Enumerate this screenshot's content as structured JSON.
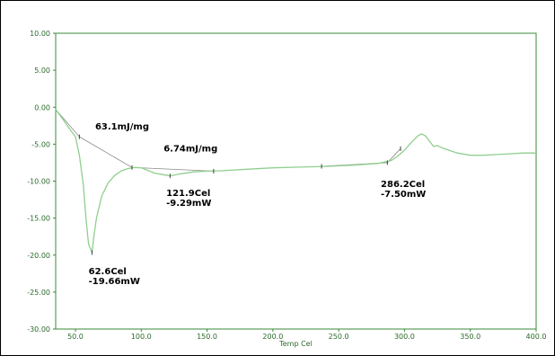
{
  "chart_data": {
    "type": "line",
    "title": "",
    "xlabel": "Temp Cel",
    "ylabel": "",
    "xlim": [
      35,
      400
    ],
    "ylim": [
      -30,
      10
    ],
    "xticks": [
      50,
      100,
      150,
      200,
      250,
      300,
      350,
      400
    ],
    "xtick_labels": [
      "50.0",
      "100.0",
      "150.0",
      "200.0",
      "250.0",
      "300.0",
      "350.0",
      "400.0"
    ],
    "yticks": [
      10,
      5,
      0,
      -5,
      -10,
      -15,
      -20,
      -25,
      -30
    ],
    "ytick_labels": [
      "10.00",
      "5.00",
      "0.00",
      "-5.00",
      "-10.00",
      "-15.00",
      "-20.00",
      "-25.00",
      "-30.00"
    ],
    "grid": false,
    "colors": {
      "curve": "#8fcf8f",
      "axis": "#3a8a3a",
      "baseline": "#8a8a8a",
      "text": "#2a6a2a"
    },
    "series": [
      {
        "x": [
          35,
          40,
          45,
          50,
          53,
          56,
          58,
          60,
          62.6,
          64,
          66,
          70,
          75,
          80,
          85,
          90,
          95,
          100,
          110,
          121.9,
          130,
          140,
          150,
          160,
          180,
          200,
          220,
          240,
          260,
          280,
          290,
          295,
          300,
          305,
          310,
          313,
          316,
          319,
          322,
          325,
          330,
          340,
          350,
          360,
          370,
          380,
          390,
          400
        ],
        "y": [
          -0.3,
          -1.5,
          -2.8,
          -4.0,
          -6.5,
          -10.5,
          -15,
          -18.5,
          -19.66,
          -17.5,
          -15,
          -12,
          -10.2,
          -9.2,
          -8.6,
          -8.3,
          -8.15,
          -8.2,
          -8.9,
          -9.29,
          -9.0,
          -8.75,
          -8.65,
          -8.6,
          -8.4,
          -8.2,
          -8.1,
          -8.0,
          -7.85,
          -7.6,
          -7.2,
          -6.6,
          -5.8,
          -4.8,
          -3.9,
          -3.6,
          -3.9,
          -4.6,
          -5.3,
          -5.2,
          -5.6,
          -6.2,
          -6.5,
          -6.5,
          -6.4,
          -6.3,
          -6.2,
          -6.2
        ]
      }
    ],
    "baselines": [
      {
        "x": [
          35,
          53
        ],
        "y": [
          -0.3,
          -4.0
        ]
      },
      {
        "x": [
          53,
          93
        ],
        "y": [
          -4.0,
          -8.15
        ]
      },
      {
        "x": [
          93,
          155
        ],
        "y": [
          -8.15,
          -8.65
        ]
      },
      {
        "x": [
          237,
          287
        ],
        "y": [
          -8.0,
          -7.5
        ]
      },
      {
        "x": [
          287,
          297
        ],
        "y": [
          -7.5,
          -5.6
        ]
      }
    ],
    "markers": [
      {
        "x": 53,
        "y": -4.0
      },
      {
        "x": 62.6,
        "y": -19.66
      },
      {
        "x": 93,
        "y": -8.15
      },
      {
        "x": 121.9,
        "y": -9.29
      },
      {
        "x": 155,
        "y": -8.65
      },
      {
        "x": 237,
        "y": -8.0
      },
      {
        "x": 287,
        "y": -7.5
      },
      {
        "x": 297,
        "y": -5.6
      }
    ],
    "annotations": [
      {
        "line1": "63.1mJ/mg",
        "line2": "",
        "x": 65,
        "y": -3
      },
      {
        "line1": "6.74mJ/mg",
        "line2": "",
        "x": 117,
        "y": -6
      },
      {
        "line1": "121.9Cel",
        "line2": "-9.29mW",
        "x": 119,
        "y": -12
      },
      {
        "line1": "286.2Cel",
        "line2": "-7.50mW",
        "x": 282,
        "y": -10.8
      },
      {
        "line1": "62.6Cel",
        "line2": "-19.66mW",
        "x": 60,
        "y": -22.6
      }
    ]
  }
}
